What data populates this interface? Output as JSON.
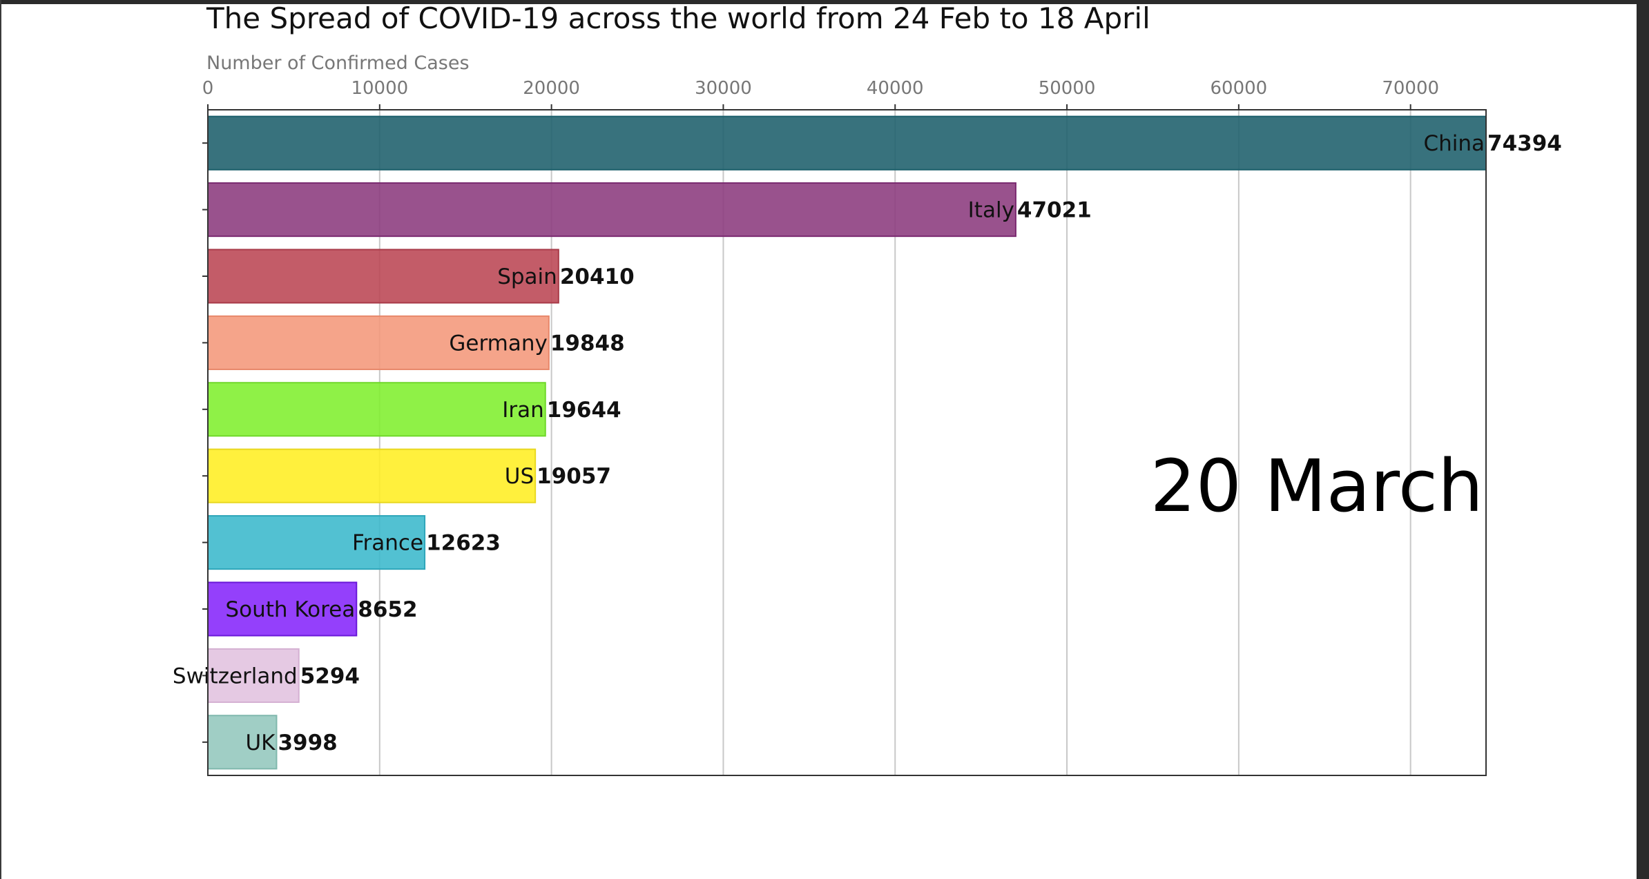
{
  "chart_data": {
    "type": "bar",
    "orientation": "horizontal",
    "title": "The Spread of COVID-19 across the world from 24 Feb to 18 April",
    "xlabel": "Number of Confirmed Cases",
    "ylabel": "",
    "date_label": "20 March",
    "xlim": [
      0,
      74394
    ],
    "x_ticks": [
      0,
      10000,
      20000,
      30000,
      40000,
      50000,
      60000,
      70000
    ],
    "grid": "vertical",
    "categories": [
      "China",
      "Italy",
      "Spain",
      "Germany",
      "Iran",
      "US",
      "France",
      "South Korea",
      "Switzerland",
      "UK"
    ],
    "values": [
      74394,
      47021,
      20410,
      19848,
      19644,
      19057,
      12623,
      8652,
      5294,
      3998
    ],
    "colors": [
      "#1c5f6b",
      "#8b3a7d",
      "#bb4553",
      "#f4977a",
      "#7fef2d",
      "#ffee22",
      "#3ab8cc",
      "#8526fb",
      "#e1c2df",
      "#93c7bd"
    ],
    "edge_colors": [
      "#1c5f6b",
      "#7a2a70",
      "#a83a48",
      "#e8876a",
      "#6fd82a",
      "#e8d820",
      "#2ea6ba",
      "#6a18d8",
      "#d4b0d2",
      "#80b8ad"
    ]
  }
}
